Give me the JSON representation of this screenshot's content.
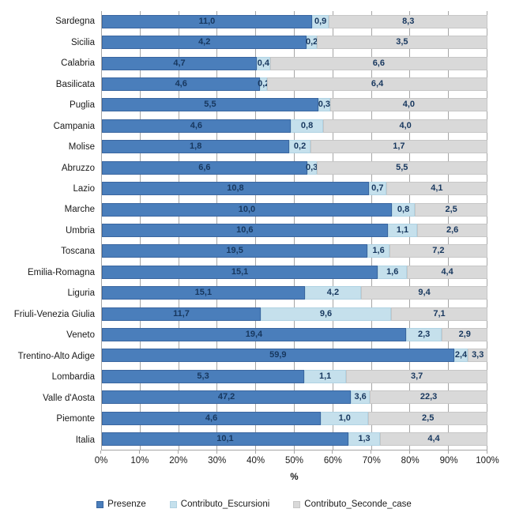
{
  "chart_data": {
    "type": "bar",
    "orientation": "horizontal",
    "stacked_percent": true,
    "xlabel": "%",
    "xlim": [
      0,
      100
    ],
    "x_ticks": [
      "0%",
      "10%",
      "20%",
      "30%",
      "40%",
      "50%",
      "60%",
      "70%",
      "80%",
      "90%",
      "100%"
    ],
    "grid": true,
    "legend_position": "bottom",
    "value_label_decimal_separator": ",",
    "value_label_color": "#17375e",
    "gridline_color": "#a6a6a6",
    "axis_color": "#a6a6a6",
    "categories": [
      "Sardegna",
      "Sicilia",
      "Calabria",
      "Basilicata",
      "Puglia",
      "Campania",
      "Molise",
      "Abruzzo",
      "Lazio",
      "Marche",
      "Umbria",
      "Toscana",
      "Emilia-Romagna",
      "Liguria",
      "Friuli-Venezia Giulia",
      "Veneto",
      "Trentino-Alto Adige",
      "Lombardia",
      "Valle d'Aosta",
      "Piemonte",
      "Italia"
    ],
    "series": [
      {
        "name": "Presenze",
        "color": "#4a7ebb",
        "border_color": "#3a66a0",
        "values": [
          11.0,
          4.2,
          4.7,
          4.6,
          5.5,
          4.6,
          1.8,
          6.6,
          10.8,
          10.0,
          10.6,
          19.5,
          15.1,
          15.1,
          11.7,
          19.4,
          59.9,
          5.3,
          47.2,
          4.6,
          10.1
        ]
      },
      {
        "name": "Contributo_Escursioni",
        "color": "#c5e0ec",
        "border_color": "#b0d2e2",
        "values": [
          0.9,
          0.2,
          0.4,
          0.2,
          0.3,
          0.8,
          0.2,
          0.3,
          0.7,
          0.8,
          1.1,
          1.6,
          1.6,
          4.2,
          9.6,
          2.3,
          2.4,
          1.1,
          3.6,
          1.0,
          1.3
        ]
      },
      {
        "name": "Contributo_Seconde_case",
        "color": "#d9d9d9",
        "border_color": "#c6c6c6",
        "values": [
          8.3,
          3.5,
          6.6,
          6.4,
          4.0,
          4.0,
          1.7,
          5.5,
          4.1,
          2.5,
          2.6,
          7.2,
          4.4,
          9.4,
          7.1,
          2.9,
          3.3,
          3.7,
          22.3,
          2.5,
          4.4
        ]
      }
    ]
  }
}
